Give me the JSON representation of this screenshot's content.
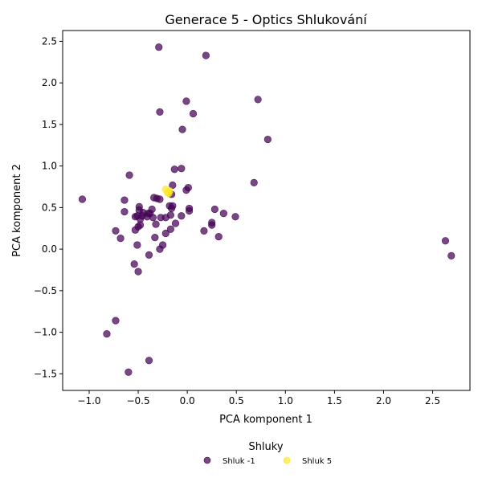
{
  "chart_data": {
    "type": "scatter",
    "title": "Generace 5 - Optics Shlukování",
    "xlabel": "PCA komponent 1",
    "ylabel": "PCA komponent 2",
    "xlim": [
      -1.27,
      2.88
    ],
    "ylim": [
      -1.7,
      2.63
    ],
    "x_ticks": [
      "-1.0",
      "-0.5",
      "0.0",
      "0.5",
      "1.0",
      "1.5",
      "2.0",
      "2.5"
    ],
    "x_tick_values": [
      -1.0,
      -0.5,
      0.0,
      0.5,
      1.0,
      1.5,
      2.0,
      2.5
    ],
    "y_ticks": [
      "-1.5",
      "-1.0",
      "-0.5",
      "0.0",
      "0.5",
      "1.0",
      "1.5",
      "2.0",
      "2.5"
    ],
    "y_tick_values": [
      -1.5,
      -1.0,
      -0.5,
      0.0,
      0.5,
      1.0,
      1.5,
      2.0,
      2.5
    ],
    "grid": false,
    "legend": {
      "title": "Shluky",
      "placement": "bottom-center"
    },
    "series": [
      {
        "name": "Shluk -1",
        "color": "#440154",
        "points": [
          [
            -0.29,
            2.43
          ],
          [
            0.19,
            2.33
          ],
          [
            0.72,
            1.8
          ],
          [
            -0.01,
            1.78
          ],
          [
            -0.28,
            1.65
          ],
          [
            0.06,
            1.63
          ],
          [
            -0.05,
            1.44
          ],
          [
            0.82,
            1.32
          ],
          [
            0.68,
            0.8
          ],
          [
            -0.13,
            0.96
          ],
          [
            -0.06,
            0.97
          ],
          [
            -0.59,
            0.89
          ],
          [
            -1.07,
            0.6
          ],
          [
            -0.64,
            0.59
          ],
          [
            0.01,
            0.74
          ],
          [
            -0.15,
            0.77
          ],
          [
            -0.01,
            0.71
          ],
          [
            -0.34,
            0.62
          ],
          [
            -0.31,
            0.61
          ],
          [
            -0.28,
            0.6
          ],
          [
            -0.16,
            0.66
          ],
          [
            -0.18,
            0.52
          ],
          [
            -0.15,
            0.52
          ],
          [
            -0.16,
            0.49
          ],
          [
            -0.49,
            0.51
          ],
          [
            -0.49,
            0.47
          ],
          [
            -0.36,
            0.48
          ],
          [
            -0.38,
            0.43
          ],
          [
            -0.4,
            0.43
          ],
          [
            -0.45,
            0.44
          ],
          [
            -0.46,
            0.4
          ],
          [
            -0.51,
            0.4
          ],
          [
            -0.53,
            0.39
          ],
          [
            -0.48,
            0.36
          ],
          [
            -0.41,
            0.39
          ],
          [
            -0.35,
            0.38
          ],
          [
            -0.27,
            0.38
          ],
          [
            -0.22,
            0.38
          ],
          [
            -0.17,
            0.41
          ],
          [
            -0.06,
            0.4
          ],
          [
            0.02,
            0.49
          ],
          [
            0.02,
            0.46
          ],
          [
            0.28,
            0.48
          ],
          [
            0.37,
            0.43
          ],
          [
            0.49,
            0.39
          ],
          [
            0.25,
            0.32
          ],
          [
            0.25,
            0.29
          ],
          [
            -0.64,
            0.45
          ],
          [
            -0.32,
            0.3
          ],
          [
            -0.12,
            0.31
          ],
          [
            -0.48,
            0.29
          ],
          [
            -0.5,
            0.27
          ],
          [
            -0.17,
            0.24
          ],
          [
            -0.22,
            0.19
          ],
          [
            -0.53,
            0.23
          ],
          [
            -0.73,
            0.22
          ],
          [
            0.17,
            0.22
          ],
          [
            -0.68,
            0.13
          ],
          [
            -0.33,
            0.14
          ],
          [
            0.32,
            0.15
          ],
          [
            -0.51,
            0.05
          ],
          [
            -0.25,
            0.05
          ],
          [
            -0.28,
            0.0
          ],
          [
            -0.39,
            -0.07
          ],
          [
            -0.54,
            -0.18
          ],
          [
            -0.5,
            -0.27
          ],
          [
            2.63,
            0.1
          ],
          [
            2.69,
            -0.08
          ],
          [
            -0.73,
            -0.86
          ],
          [
            -0.82,
            -1.02
          ],
          [
            -0.39,
            -1.34
          ],
          [
            -0.6,
            -1.48
          ]
        ]
      },
      {
        "name": "Shluk 5",
        "color": "#fde725",
        "points": [
          [
            -0.22,
            0.72
          ],
          [
            -0.19,
            0.67
          ],
          [
            -0.18,
            0.7
          ],
          [
            -0.2,
            0.68
          ]
        ]
      }
    ]
  }
}
